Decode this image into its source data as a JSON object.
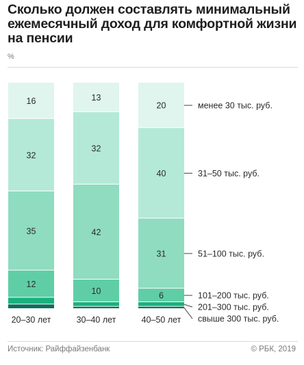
{
  "header": {
    "title_lines": [
      "Сколько должен составлять минимальный",
      "ежемесячный доход для комфортной жизни",
      "на пенсии"
    ],
    "unit": "%"
  },
  "footer": {
    "source": "Источник: Райффайзенбанк",
    "copyright": "© РБК, 2019"
  },
  "chart_data": {
    "type": "bar",
    "stacked": true,
    "categories": [
      "20–30 лет",
      "30–40 лет",
      "40–50 лет"
    ],
    "ylabel": "%",
    "series": [
      {
        "name": "менее 30 тыс. руб.",
        "values": [
          16,
          13,
          20
        ],
        "color": "#dff5ed"
      },
      {
        "name": "31–50 тыс. руб.",
        "values": [
          32,
          32,
          40
        ],
        "color": "#b4e9d7"
      },
      {
        "name": "51–100 тыс. руб.",
        "values": [
          35,
          42,
          31
        ],
        "color": "#8fdcc1"
      },
      {
        "name": "101–200 тыс. руб.",
        "values": [
          12,
          10,
          6
        ],
        "color": "#5fcea6"
      },
      {
        "name": "201–300 тыс. руб.",
        "values": [
          3,
          2,
          2
        ],
        "color": "#1bb17f"
      },
      {
        "name": "свыше 300 тыс. руб.",
        "values": [
          2,
          1,
          1
        ],
        "color": "#0c6e5d"
      }
    ],
    "legend": "right",
    "grid": false
  }
}
